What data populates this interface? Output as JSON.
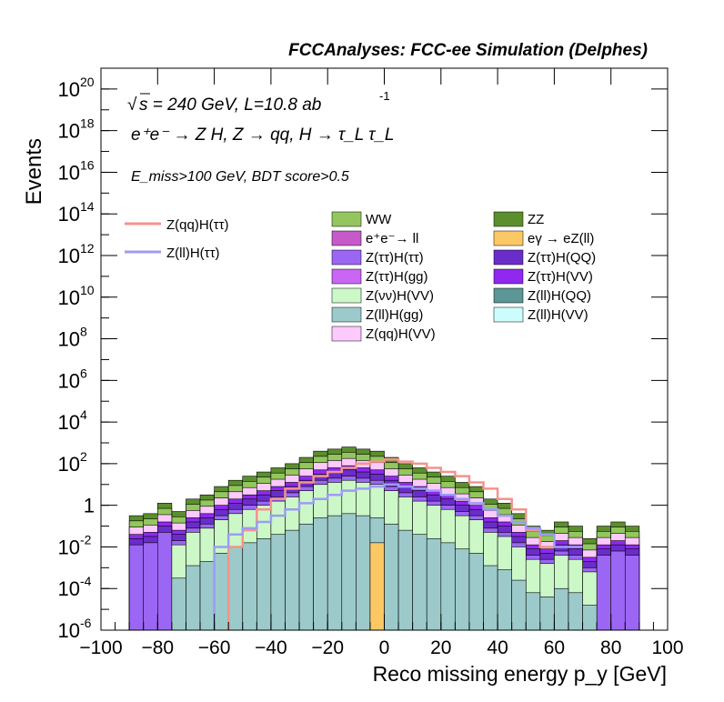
{
  "chart_data": {
    "type": "area",
    "title": "FCCAnalyses: FCC-ee Simulation (Delphes)",
    "xlabel": "Reco missing energy p_y [GeV]",
    "ylabel": "Events",
    "xlim": [
      -100,
      100
    ],
    "ylim": [
      1e-06,
      1e+21
    ],
    "yscale": "log",
    "grid": false,
    "annotations": {
      "energy_lumi": "s = 240 GeV, L=10.8 ab",
      "lumi_exp": "-1",
      "process": "e⁺e⁻ → Z H, Z → qq, H → τ_L τ_L",
      "selection": "E_miss>100 GeV, BDT score>0.5"
    },
    "x_ticks": [
      "−100",
      "−80",
      "−60",
      "−40",
      "−20",
      "0",
      "20",
      "40",
      "60",
      "80",
      "100"
    ],
    "y_ticks": [
      {
        "base": "10",
        "exp": "20"
      },
      {
        "base": "10",
        "exp": "18"
      },
      {
        "base": "10",
        "exp": "16"
      },
      {
        "base": "10",
        "exp": "14"
      },
      {
        "base": "10",
        "exp": "12"
      },
      {
        "base": "10",
        "exp": "10"
      },
      {
        "base": "10",
        "exp": "8"
      },
      {
        "base": "10",
        "exp": "6"
      },
      {
        "base": "10",
        "exp": "4"
      },
      {
        "base": "10",
        "exp": "2"
      },
      {
        "base": "1",
        "exp": ""
      },
      {
        "base": "10",
        "exp": "-2"
      },
      {
        "base": "10",
        "exp": "-4"
      },
      {
        "base": "10",
        "exp": "-6"
      }
    ],
    "signal_legend": [
      {
        "name": "Z(qq)H(ττ)",
        "color": "#f4938c"
      },
      {
        "name": "Z(ll)H(ττ)",
        "color": "#9c9cf4"
      }
    ],
    "background_legend": [
      {
        "name": "WW",
        "color": "#93c65e"
      },
      {
        "name": "ZZ",
        "color": "#5b8f2d"
      },
      {
        "name": "e⁺e⁻→ ll",
        "color": "#c65ac9"
      },
      {
        "name": "eγ → eZ(ll)",
        "color": "#fcc866"
      },
      {
        "name": "Z(ττ)H(ττ)",
        "color": "#9c66f4"
      },
      {
        "name": "Z(ττ)H(QQ)",
        "color": "#6a2dc9"
      },
      {
        "name": "Z(ττ)H(gg)",
        "color": "#c966f4"
      },
      {
        "name": "Z(ττ)H(VV)",
        "color": "#9028f0"
      },
      {
        "name": "Z(νν)H(VV)",
        "color": "#ccf8c8"
      },
      {
        "name": "Z(ll)H(QQ)",
        "color": "#5c9696"
      },
      {
        "name": "Z(ll)H(gg)",
        "color": "#9ccaca"
      },
      {
        "name": "Z(ll)H(VV)",
        "color": "#ccfcfc"
      },
      {
        "name": "Z(qq)H(VV)",
        "color": "#fccafc"
      }
    ],
    "bin_edges_start": -90,
    "bin_width": 5,
    "stack_totals_log10": [
      -0.5,
      -0.4,
      0.1,
      -0.3,
      0.3,
      0.5,
      0.9,
      1.2,
      1.4,
      1.6,
      1.8,
      2.0,
      2.3,
      2.6,
      2.7,
      2.8,
      2.7,
      2.6,
      2.3,
      2.0,
      1.8,
      1.6,
      1.4,
      1.1,
      0.9,
      0.3,
      0.1,
      -0.4,
      -1.0,
      -1.2,
      -0.8,
      -1.0,
      -1.6,
      -1.0,
      -0.8,
      -1.0
    ],
    "signal_qq_log10": [
      null,
      null,
      null,
      null,
      -2.0,
      -1.2,
      -0.2,
      0.3,
      0.8,
      1.1,
      1.4,
      1.6,
      1.8,
      2.0,
      2.1,
      2.2,
      2.1,
      2.0,
      1.8,
      1.6,
      1.4,
      1.1,
      0.8,
      0.3,
      -0.2,
      -1.2,
      -2.0,
      null,
      null,
      null
    ],
    "signal_ll_log10": [
      null,
      null,
      null,
      -2.0,
      -1.4,
      -1.1,
      -0.8,
      -0.5,
      -0.2,
      0.1,
      0.3,
      0.5,
      0.7,
      0.8,
      0.9,
      1.0,
      0.9,
      0.8,
      0.7,
      0.5,
      0.3,
      0.1,
      -0.2,
      -0.5,
      -0.8,
      -1.1,
      -1.4,
      -2.0,
      -2.0,
      null
    ]
  }
}
